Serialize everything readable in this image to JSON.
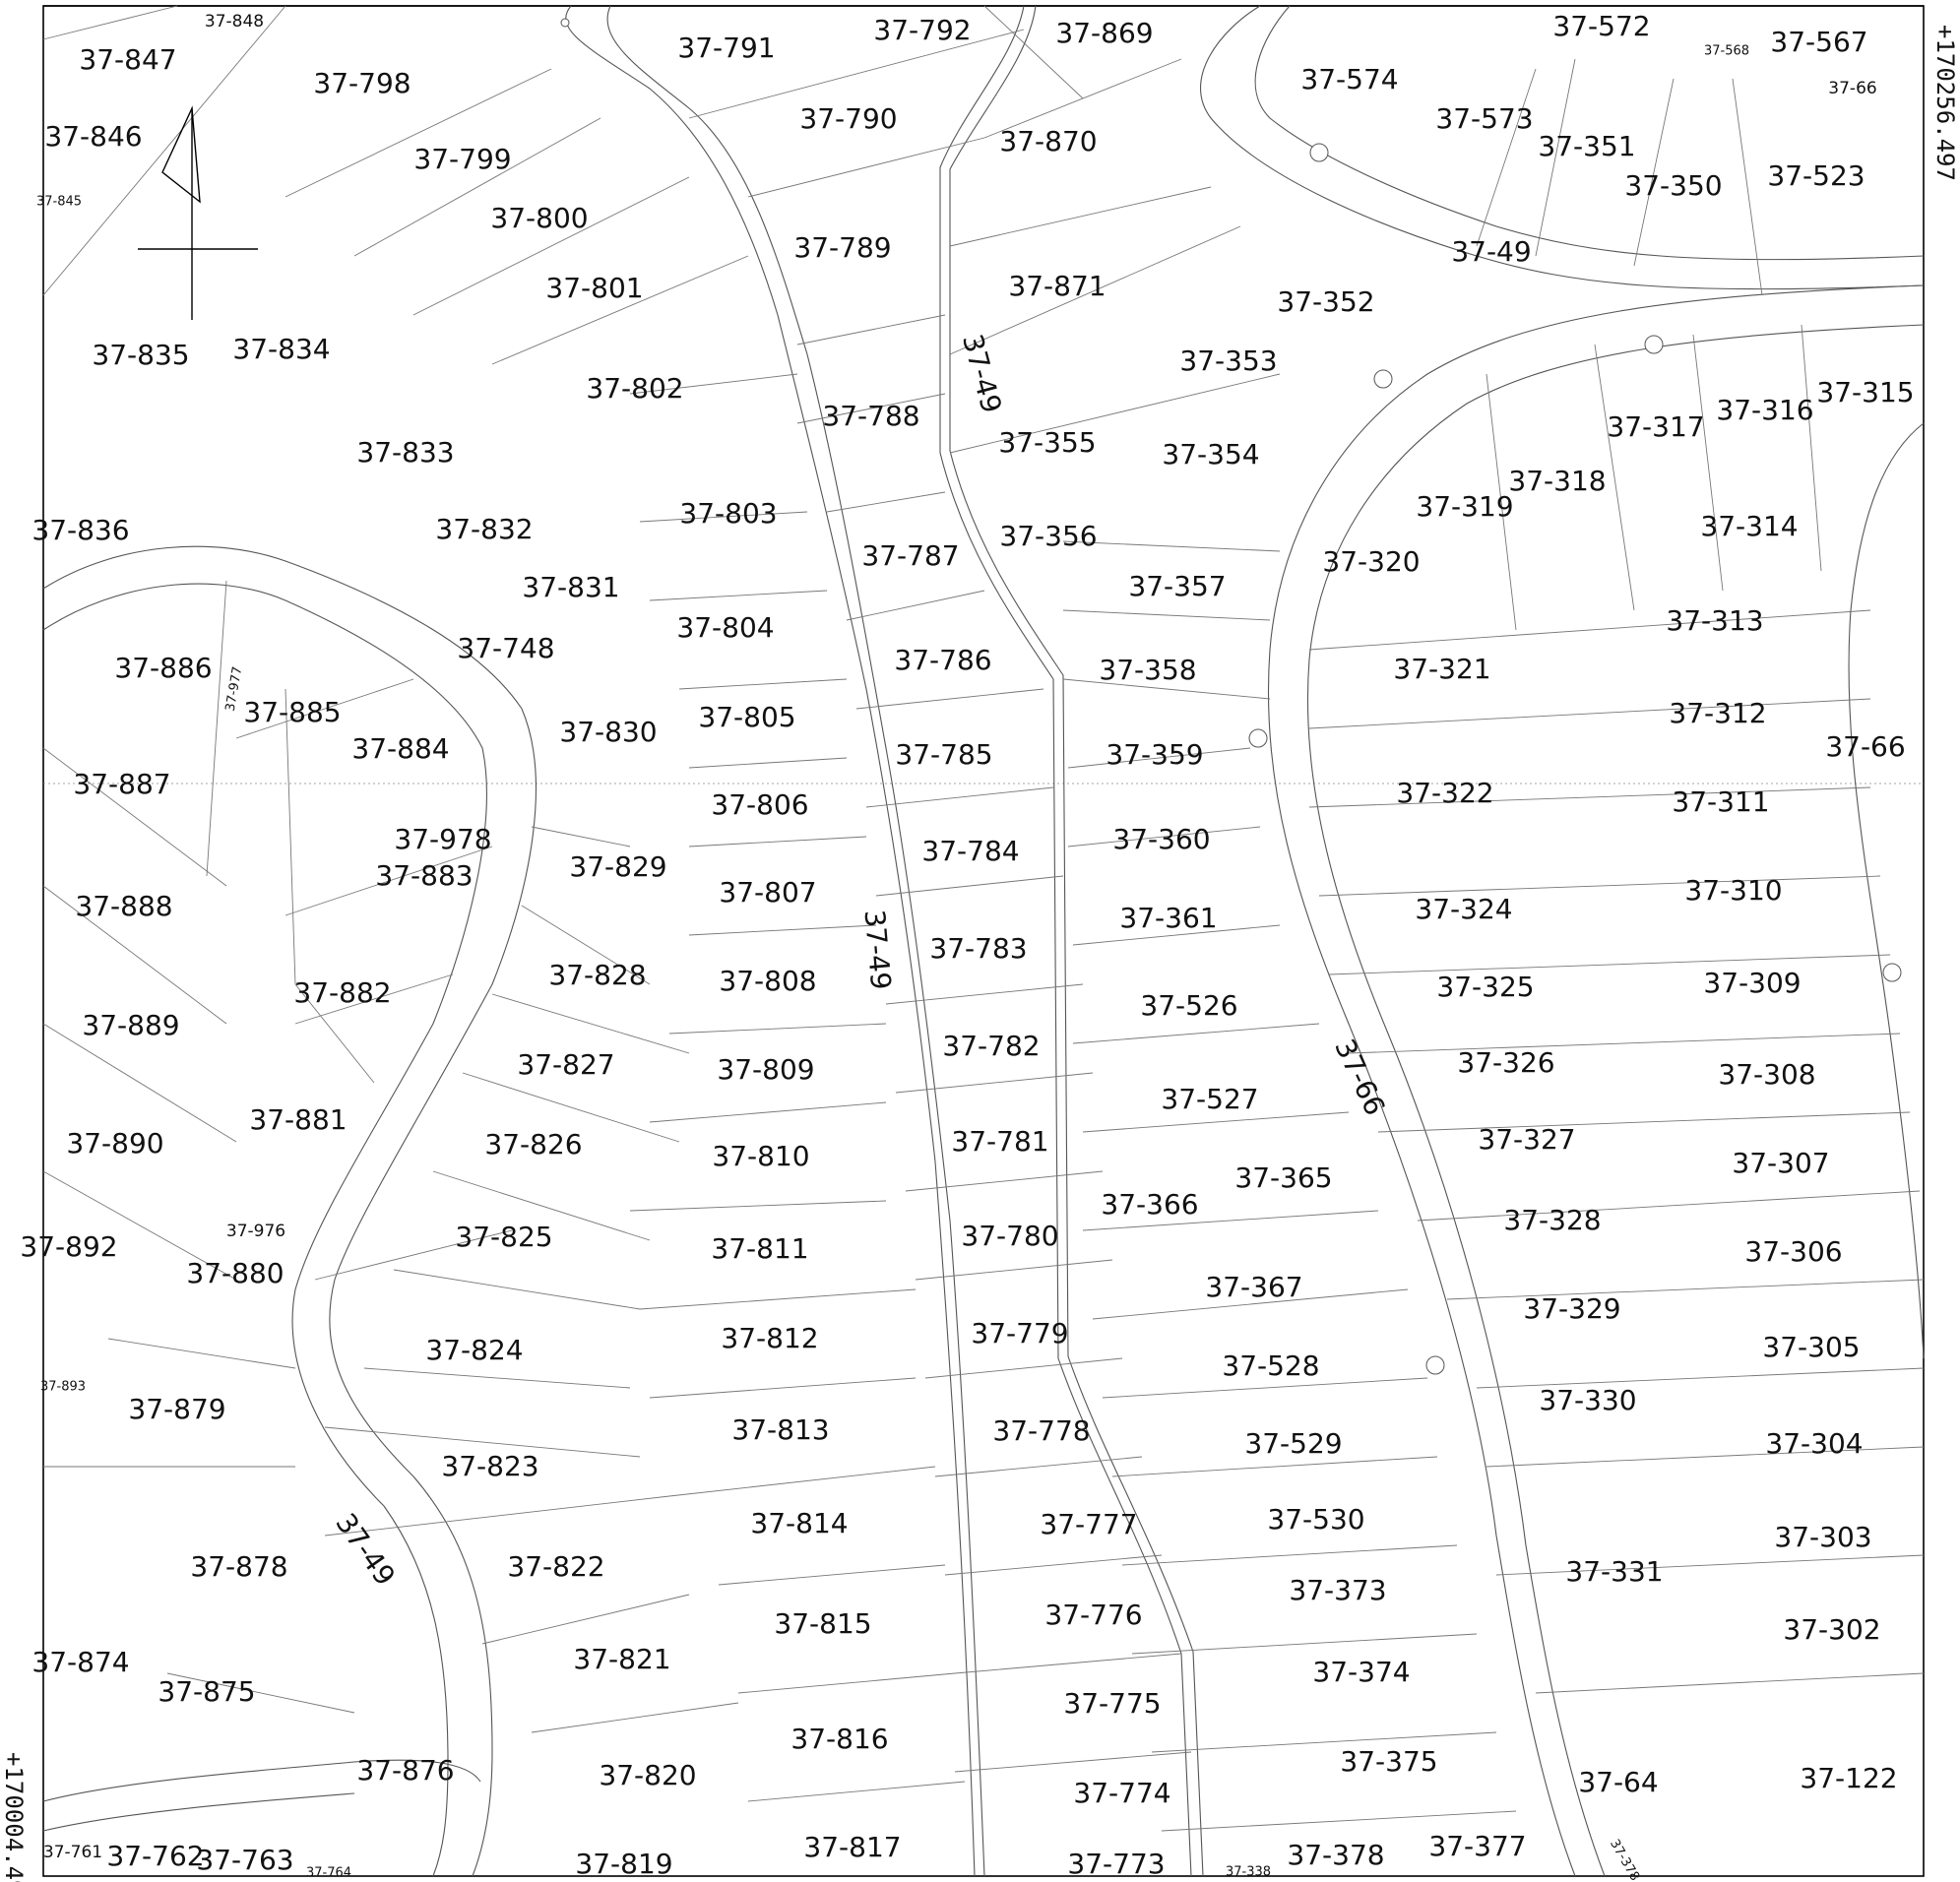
{
  "coordinates": {
    "top_right": "+170256.497",
    "bottom_left": "+170004.497"
  },
  "roads": {
    "r1": "37-49",
    "r2": "37-49",
    "r3": "37-49",
    "r4": "37-66"
  },
  "parcels": [
    "37-848",
    "37-847",
    "37-798",
    "37-791",
    "37-792",
    "37-869",
    "37-572",
    "37-568",
    "37-567",
    "37-66",
    "37-846",
    "37-799",
    "37-790",
    "37-870",
    "37-574",
    "37-573",
    "37-351",
    "37-350",
    "37-523",
    "37-845",
    "37-800",
    "37-789",
    "37-49",
    "37-801",
    "37-871",
    "37-352",
    "37-835",
    "37-834",
    "37-353",
    "37-802",
    "37-788",
    "37-317",
    "37-316",
    "37-315",
    "37-833",
    "37-355",
    "37-354",
    "37-318",
    "37-319",
    "37-803",
    "37-836",
    "37-832",
    "37-356",
    "37-314",
    "37-787",
    "37-320",
    "37-831",
    "37-357",
    "37-313",
    "37-804",
    "37-748",
    "37-786",
    "37-886",
    "37-977",
    "37-358",
    "37-321",
    "37-885",
    "37-830",
    "37-805",
    "37-312",
    "37-884",
    "37-785",
    "37-359",
    "37-887",
    "37-322",
    "37-311",
    "37-806",
    "37-66",
    "37-978",
    "37-360",
    "37-829",
    "37-784",
    "37-883",
    "37-807",
    "37-324",
    "37-310",
    "37-888",
    "37-361",
    "37-783",
    "37-828",
    "37-808",
    "37-309",
    "37-325",
    "37-526",
    "37-882",
    "37-782",
    "37-889",
    "37-827",
    "37-809",
    "37-326",
    "37-308",
    "37-527",
    "37-881",
    "37-781",
    "37-327",
    "37-826",
    "37-810",
    "37-307",
    "37-365",
    "37-366",
    "37-890",
    "37-976",
    "37-328",
    "37-825",
    "37-780",
    "37-306",
    "37-811",
    "37-892",
    "37-880",
    "37-367",
    "37-329",
    "37-779",
    "37-812",
    "37-824",
    "37-305",
    "37-528",
    "37-330",
    "37-879",
    "37-893",
    "37-778",
    "37-813",
    "37-304",
    "37-529",
    "37-823",
    "37-530",
    "37-814",
    "37-777",
    "37-303",
    "37-878",
    "37-822",
    "37-331",
    "37-373",
    "37-776",
    "37-874",
    "37-815",
    "37-302",
    "37-875",
    "37-821",
    "37-374",
    "37-775",
    "37-816",
    "37-876",
    "37-820",
    "37-375",
    "37-64",
    "37-122",
    "37-774",
    "37-761",
    "37-762",
    "37-763",
    "37-764",
    "37-819",
    "37-817",
    "37-773",
    "37-338",
    "37-378",
    "37-377",
    "37-378"
  ]
}
